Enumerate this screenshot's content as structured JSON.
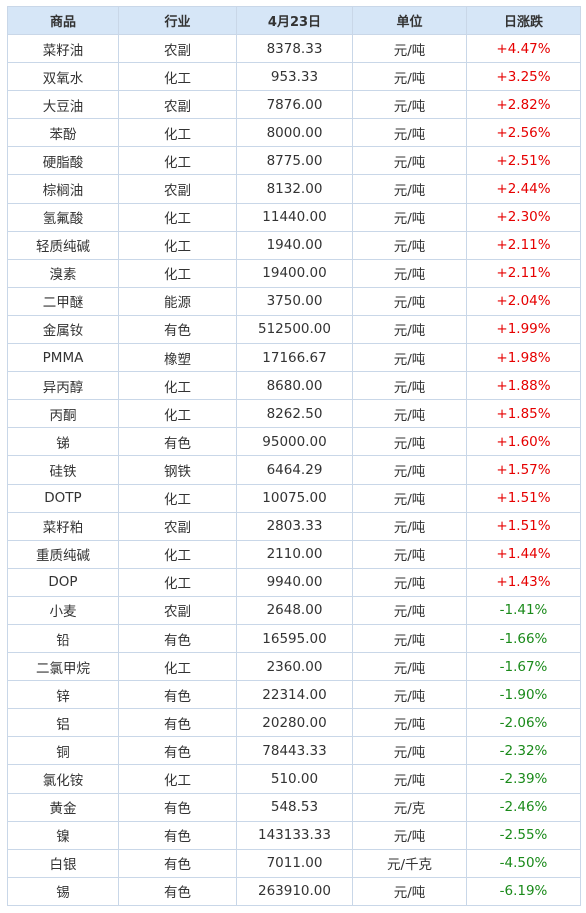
{
  "table": {
    "headers": [
      "商品",
      "行业",
      "4月23日",
      "单位",
      "日涨跌"
    ],
    "colors": {
      "up": "#e60000",
      "down": "#1a8a1a",
      "header_bg": "#d6e6f7"
    },
    "rows": [
      [
        "菜籽油",
        "农副",
        "8378.33",
        "元/吨",
        "+4.47%"
      ],
      [
        "双氧水",
        "化工",
        "953.33",
        "元/吨",
        "+3.25%"
      ],
      [
        "大豆油",
        "农副",
        "7876.00",
        "元/吨",
        "+2.82%"
      ],
      [
        "苯酚",
        "化工",
        "8000.00",
        "元/吨",
        "+2.56%"
      ],
      [
        "硬脂酸",
        "化工",
        "8775.00",
        "元/吨",
        "+2.51%"
      ],
      [
        "棕榈油",
        "农副",
        "8132.00",
        "元/吨",
        "+2.44%"
      ],
      [
        "氢氟酸",
        "化工",
        "11440.00",
        "元/吨",
        "+2.30%"
      ],
      [
        "轻质纯碱",
        "化工",
        "1940.00",
        "元/吨",
        "+2.11%"
      ],
      [
        "溴素",
        "化工",
        "19400.00",
        "元/吨",
        "+2.11%"
      ],
      [
        "二甲醚",
        "能源",
        "3750.00",
        "元/吨",
        "+2.04%"
      ],
      [
        "金属钕",
        "有色",
        "512500.00",
        "元/吨",
        "+1.99%"
      ],
      [
        "PMMA",
        "橡塑",
        "17166.67",
        "元/吨",
        "+1.98%"
      ],
      [
        "异丙醇",
        "化工",
        "8680.00",
        "元/吨",
        "+1.88%"
      ],
      [
        "丙酮",
        "化工",
        "8262.50",
        "元/吨",
        "+1.85%"
      ],
      [
        "锑",
        "有色",
        "95000.00",
        "元/吨",
        "+1.60%"
      ],
      [
        "硅铁",
        "钢铁",
        "6464.29",
        "元/吨",
        "+1.57%"
      ],
      [
        "DOTP",
        "化工",
        "10075.00",
        "元/吨",
        "+1.51%"
      ],
      [
        "菜籽粕",
        "农副",
        "2803.33",
        "元/吨",
        "+1.51%"
      ],
      [
        "重质纯碱",
        "化工",
        "2110.00",
        "元/吨",
        "+1.44%"
      ],
      [
        "DOP",
        "化工",
        "9940.00",
        "元/吨",
        "+1.43%"
      ],
      [
        "小麦",
        "农副",
        "2648.00",
        "元/吨",
        "-1.41%"
      ],
      [
        "铅",
        "有色",
        "16595.00",
        "元/吨",
        "-1.66%"
      ],
      [
        "二氯甲烷",
        "化工",
        "2360.00",
        "元/吨",
        "-1.67%"
      ],
      [
        "锌",
        "有色",
        "22314.00",
        "元/吨",
        "-1.90%"
      ],
      [
        "铝",
        "有色",
        "20280.00",
        "元/吨",
        "-2.06%"
      ],
      [
        "铜",
        "有色",
        "78443.33",
        "元/吨",
        "-2.32%"
      ],
      [
        "氯化铵",
        "化工",
        "510.00",
        "元/吨",
        "-2.39%"
      ],
      [
        "黄金",
        "有色",
        "548.53",
        "元/克",
        "-2.46%"
      ],
      [
        "镍",
        "有色",
        "143133.33",
        "元/吨",
        "-2.55%"
      ],
      [
        "白银",
        "有色",
        "7011.00",
        "元/千克",
        "-4.50%"
      ],
      [
        "锡",
        "有色",
        "263910.00",
        "元/吨",
        "-6.19%"
      ]
    ]
  }
}
